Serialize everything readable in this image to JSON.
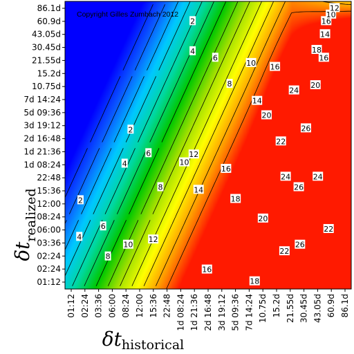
{
  "chart_data": {
    "type": "heatmap",
    "title": "",
    "copyright": "Copyright Gilles Zumbach 2012",
    "xlabel": {
      "symbol": "δt",
      "subscript": "historical"
    },
    "ylabel": {
      "symbol": "δt",
      "subscript": "realized"
    },
    "x_ticks": [
      "01:12",
      "02:24",
      "03:36",
      "06:00",
      "08:24",
      "12:00",
      "15:36",
      "22:48",
      "1d 08:24",
      "1d 21:36",
      "2d 16:48",
      "3d 19:12",
      "5d 09:36",
      "7d 14:24",
      "10.75d",
      "15.2d",
      "21.55d",
      "30.45d",
      "43.05d",
      "60.9d",
      "86.1d"
    ],
    "y_ticks": [
      "01:12",
      "02:24",
      "02:24",
      "03:36",
      "06:00",
      "08:24",
      "12:00",
      "15:36",
      "22:48",
      "1d 08:24",
      "1d 21:36",
      "2d 16:48",
      "3d 19:12",
      "5d 09:36",
      "7d 14:24",
      "10.75d",
      "15.2d",
      "21.55d",
      "30.45d",
      "43.05d",
      "60.9d",
      "86.1d"
    ],
    "contour_levels": [
      2,
      4,
      6,
      8,
      10,
      12,
      14,
      16,
      18,
      20,
      22,
      24,
      26
    ],
    "contour_labels": [
      {
        "text": "2",
        "x": 1.3,
        "y": 6.8
      },
      {
        "text": "2",
        "x": 5.5,
        "y": 12.2
      },
      {
        "text": "2",
        "x": 10.7,
        "y": 20.5
      },
      {
        "text": "4",
        "x": 1.2,
        "y": 4.0
      },
      {
        "text": "4",
        "x": 5.0,
        "y": 9.6
      },
      {
        "text": "4",
        "x": 10.7,
        "y": 18.2
      },
      {
        "text": "6",
        "x": 3.2,
        "y": 4.8
      },
      {
        "text": "6",
        "x": 7.0,
        "y": 10.4
      },
      {
        "text": "6",
        "x": 12.6,
        "y": 17.7
      },
      {
        "text": "8",
        "x": 3.6,
        "y": 2.5
      },
      {
        "text": "8",
        "x": 8.0,
        "y": 7.8
      },
      {
        "text": "8",
        "x": 13.8,
        "y": 15.7
      },
      {
        "text": "10",
        "x": 5.3,
        "y": 3.4
      },
      {
        "text": "10",
        "x": 10.0,
        "y": 9.7
      },
      {
        "text": "10",
        "x": 15.6,
        "y": 17.3
      },
      {
        "text": "12",
        "x": 7.4,
        "y": 3.8
      },
      {
        "text": "12",
        "x": 10.8,
        "y": 10.3
      },
      {
        "text": "14",
        "x": 11.2,
        "y": 7.6
      },
      {
        "text": "14",
        "x": 16.1,
        "y": 14.4
      },
      {
        "text": "16",
        "x": 11.9,
        "y": 1.5
      },
      {
        "text": "16",
        "x": 13.5,
        "y": 9.2
      },
      {
        "text": "16",
        "x": 17.6,
        "y": 17.0
      },
      {
        "text": "18",
        "x": 15.9,
        "y": 0.6
      },
      {
        "text": "18",
        "x": 14.3,
        "y": 6.9
      },
      {
        "text": "18",
        "x": 21.1,
        "y": 18.3
      },
      {
        "text": "20",
        "x": 16.6,
        "y": 5.4
      },
      {
        "text": "20",
        "x": 16.9,
        "y": 13.3
      },
      {
        "text": "22",
        "x": 18.4,
        "y": 2.9
      },
      {
        "text": "22",
        "x": 18.1,
        "y": 11.3
      },
      {
        "text": "22",
        "x": 22.1,
        "y": 4.6
      },
      {
        "text": "24",
        "x": 18.5,
        "y": 8.6
      },
      {
        "text": "24",
        "x": 19.2,
        "y": 15.2
      },
      {
        "text": "24",
        "x": 21.2,
        "y": 8.6
      },
      {
        "text": "26",
        "x": 19.7,
        "y": 3.4
      },
      {
        "text": "26",
        "x": 19.6,
        "y": 7.8
      },
      {
        "text": "26",
        "x": 20.2,
        "y": 12.3
      },
      {
        "text": "20",
        "x": 21.0,
        "y": 15.6
      },
      {
        "text": "16",
        "x": 21.7,
        "y": 17.7
      },
      {
        "text": "14",
        "x": 21.8,
        "y": 19.5
      },
      {
        "text": "16",
        "x": 21.9,
        "y": 20.5
      },
      {
        "text": "10",
        "x": 22.3,
        "y": 21.0
      },
      {
        "text": "12",
        "x": 22.6,
        "y": 21.5
      }
    ],
    "colormap": [
      "#0000ff",
      "#0b59ff",
      "#00c8ff",
      "#00d8a0",
      "#00c800",
      "#9fe000",
      "#ffff00",
      "#ff9a00",
      "#ff1a00"
    ],
    "grid": false,
    "legend": "none"
  }
}
